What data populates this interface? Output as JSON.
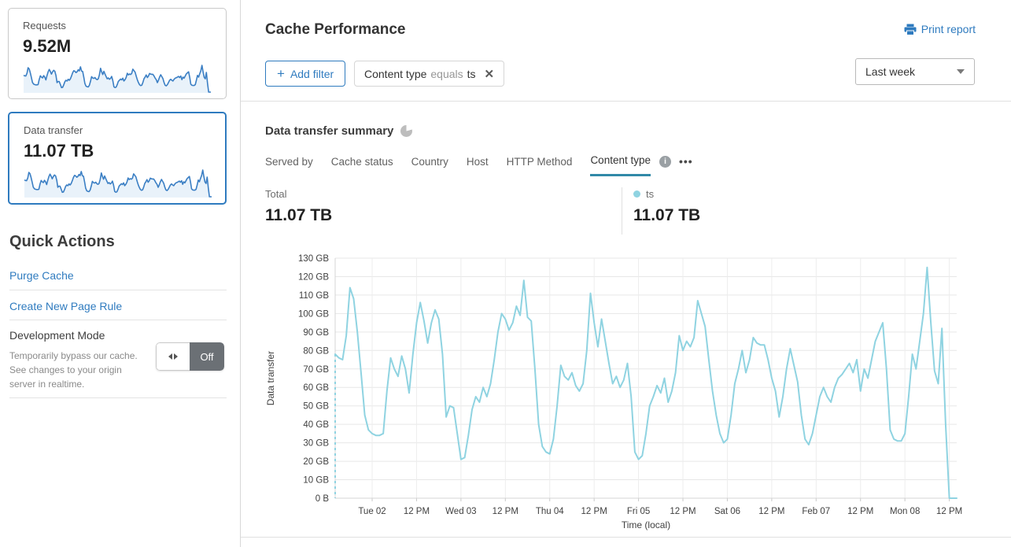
{
  "sidebar": {
    "cards": [
      {
        "label": "Requests",
        "value": "9.52M"
      },
      {
        "label": "Data transfer",
        "value": "11.07 TB"
      }
    ],
    "quick_actions": {
      "title": "Quick Actions",
      "purge_cache": "Purge Cache",
      "create_page_rule": "Create New Page Rule",
      "dev_mode": {
        "title": "Development Mode",
        "description": "Temporarily bypass our cache. See changes to your origin server in realtime.",
        "toggle_state": "Off"
      }
    }
  },
  "header": {
    "title": "Cache Performance",
    "print_label": "Print report",
    "add_filter": {
      "plus": "+",
      "label": "Add filter"
    },
    "filter_chip": {
      "field": "Content type",
      "operator": "equals",
      "value": "ts",
      "close_icon": "✕"
    },
    "time_range": "Last week"
  },
  "summary": {
    "title": "Data transfer summary",
    "tabs": [
      "Served by",
      "Cache status",
      "Country",
      "Host",
      "HTTP Method",
      "Content type"
    ],
    "active_tab": "Content type",
    "info_icon": "i",
    "more_icon": "•••",
    "total_label": "Total",
    "total_value": "11.07 TB",
    "legend_name": "ts",
    "legend_value": "11.07 TB"
  },
  "colors": {
    "accent_blue": "#2f7bbf",
    "chart_line": "#8fd3e1",
    "sparkline_stroke": "#3b7fc4",
    "sparkline_fill": "#e9f2fa",
    "tab_underline": "#3189a8"
  },
  "chart_data": {
    "type": "line",
    "title": "Data transfer summary",
    "xlabel": "Time (local)",
    "ylabel": "Data transfer",
    "ylim": [
      0,
      130
    ],
    "y_unit": "GB",
    "y_ticks": [
      "0 B",
      "10 GB",
      "20 GB",
      "30 GB",
      "40 GB",
      "50 GB",
      "60 GB",
      "70 GB",
      "80 GB",
      "90 GB",
      "100 GB",
      "110 GB",
      "120 GB",
      "130 GB"
    ],
    "x_ticks": [
      "Tue 02",
      "12 PM",
      "Wed 03",
      "12 PM",
      "Thu 04",
      "12 PM",
      "Fri 05",
      "12 PM",
      "Sat 06",
      "12 PM",
      "Feb 07",
      "12 PM",
      "Mon 08",
      "12 PM"
    ],
    "x_first_tick_hour": 10,
    "x_tick_interval_hours": 12,
    "total_hours": 168,
    "legend": [
      {
        "name": "ts",
        "color": "#8fd3e1"
      }
    ],
    "series": [
      {
        "name": "ts",
        "values_gb": [
          78,
          76,
          75,
          88,
          114,
          108,
          90,
          68,
          45,
          37,
          35,
          34,
          34,
          35,
          58,
          76,
          70,
          66,
          77,
          70,
          57,
          78,
          95,
          106,
          96,
          84,
          95,
          102,
          97,
          78,
          44,
          50,
          49,
          35,
          21,
          22,
          34,
          48,
          55,
          52,
          60,
          55,
          62,
          75,
          90,
          100,
          97,
          91,
          95,
          104,
          99,
          118,
          98,
          96,
          70,
          40,
          28,
          25,
          24,
          32,
          50,
          72,
          66,
          64,
          68,
          61,
          58,
          62,
          80,
          111,
          95,
          82,
          97,
          85,
          73,
          62,
          66,
          60,
          64,
          73,
          55,
          25,
          21,
          23,
          35,
          50,
          55,
          61,
          57,
          65,
          52,
          58,
          68,
          88,
          80,
          85,
          82,
          87,
          107,
          100,
          93,
          75,
          58,
          45,
          35,
          30,
          32,
          45,
          62,
          70,
          80,
          68,
          75,
          87,
          84,
          83,
          83,
          75,
          65,
          58,
          44,
          55,
          70,
          81,
          72,
          63,
          45,
          32,
          29,
          35,
          45,
          55,
          60,
          55,
          52,
          60,
          65,
          67,
          70,
          73,
          68,
          75,
          58,
          70,
          65,
          75,
          85,
          90,
          95,
          70,
          37,
          32,
          31,
          31,
          35,
          55,
          78,
          70,
          85,
          100,
          125,
          95,
          69,
          62,
          92,
          40,
          0,
          0,
          0
        ]
      }
    ]
  }
}
